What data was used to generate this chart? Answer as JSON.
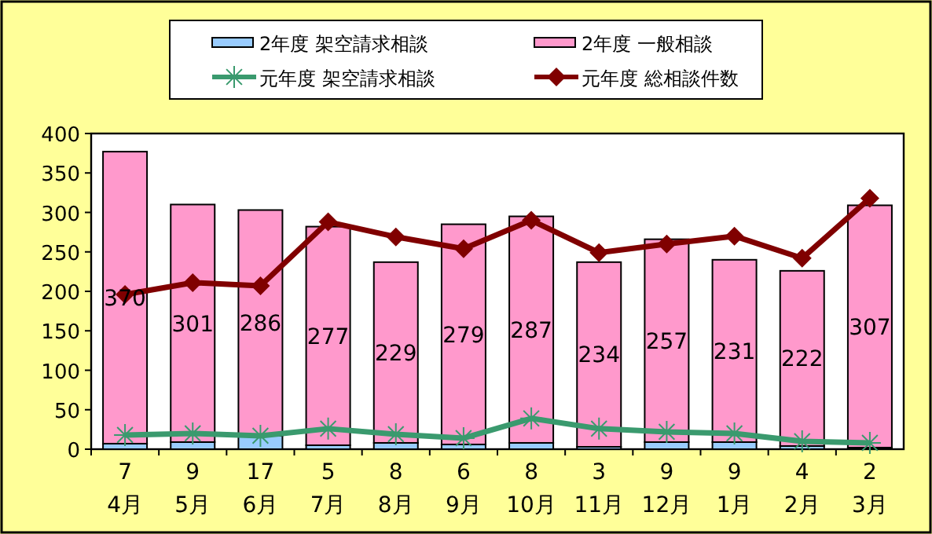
{
  "chart_data": {
    "type": "bar",
    "stacked": true,
    "categories": [
      "4月",
      "5月",
      "6月",
      "7月",
      "8月",
      "9月",
      "10月",
      "11月",
      "12月",
      "1月",
      "2月",
      "3月"
    ],
    "series": [
      {
        "name": "2年度 架空請求相談",
        "color": "#99ccff",
        "values": [
          7,
          9,
          17,
          5,
          8,
          6,
          8,
          3,
          9,
          9,
          4,
          2
        ],
        "value_labels": [
          "7",
          "9",
          "17",
          "5",
          "8",
          "6",
          "8",
          "3",
          "9",
          "9",
          "4",
          "2"
        ]
      },
      {
        "name": "2年度 一般相談",
        "color": "#ff99cc",
        "values": [
          370,
          301,
          286,
          277,
          229,
          279,
          287,
          234,
          257,
          231,
          222,
          307
        ],
        "value_labels": [
          "370",
          "301",
          "286",
          "277",
          "229",
          "279",
          "287",
          "234",
          "257",
          "231",
          "222",
          "307"
        ]
      },
      {
        "name": "元年度 架空請求相談",
        "type": "line",
        "marker": "cross",
        "color": "#3a9a6e",
        "values": [
          18,
          20,
          17,
          26,
          19,
          14,
          39,
          26,
          22,
          20,
          10,
          8
        ]
      },
      {
        "name": "元年度 総相談件数",
        "type": "line",
        "marker": "diamond",
        "color": "#800000",
        "values": [
          196,
          211,
          207,
          288,
          269,
          254,
          290,
          249,
          260,
          270,
          242,
          318
        ]
      }
    ],
    "ylim": [
      0,
      400
    ],
    "yticks": [
      0,
      50,
      100,
      150,
      200,
      250,
      300,
      350,
      400
    ],
    "legend": "top"
  }
}
